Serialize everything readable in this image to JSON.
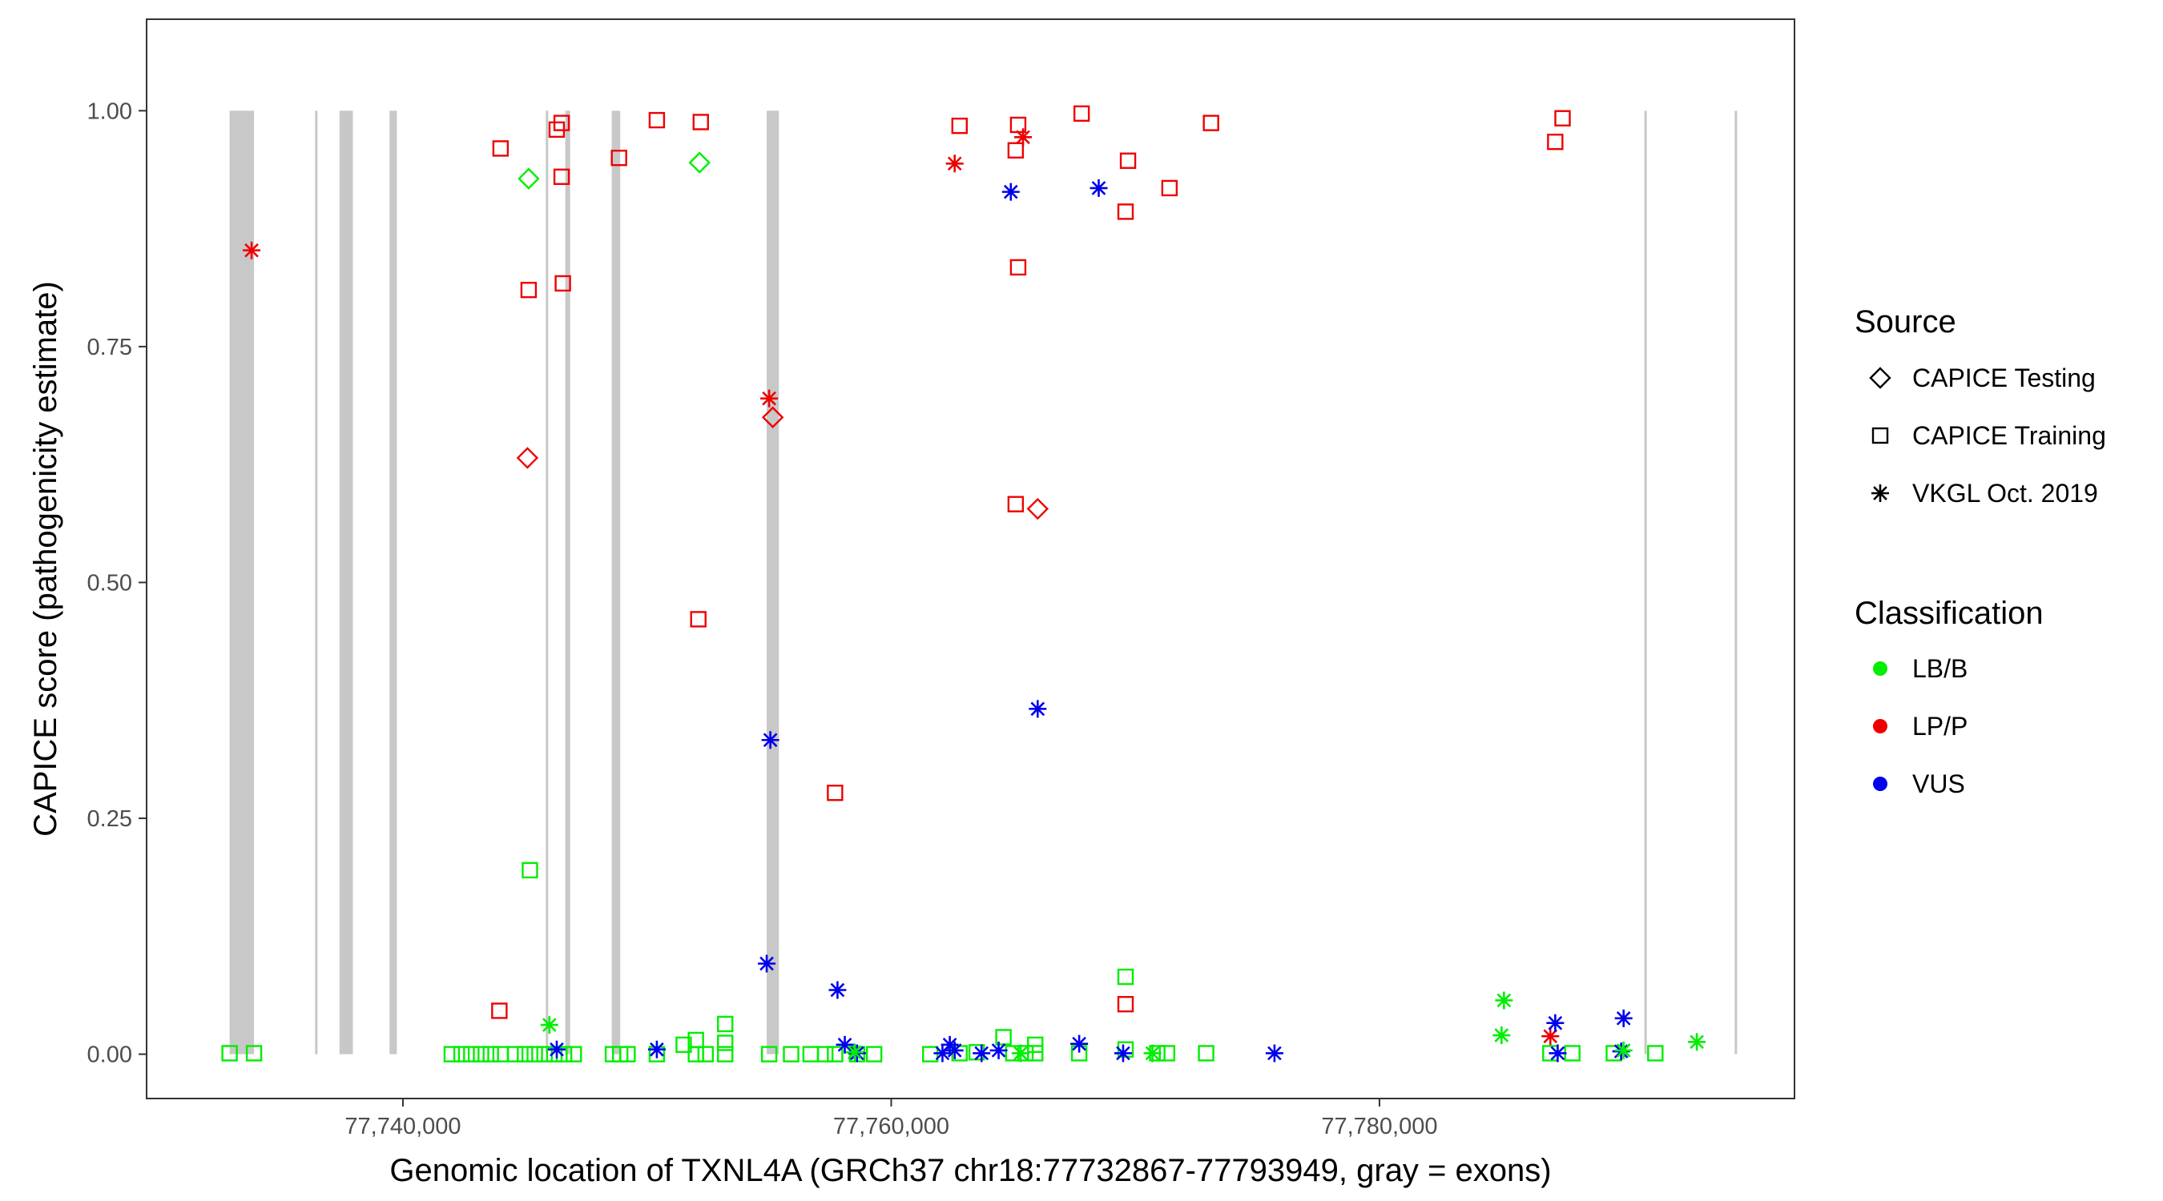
{
  "chart_data": {
    "type": "scatter",
    "title": "",
    "xlabel": "Genomic location of TXNL4A (GRCh37 chr18:77732867-77793949, gray = exons)",
    "ylabel": "CAPICE score (pathogenicity estimate)",
    "xlim": [
      77729500,
      77797000
    ],
    "ylim": [
      -0.047,
      1.097
    ],
    "x_ticks": [
      77740000,
      77760000,
      77780000
    ],
    "x_tick_labels": [
      "77,740,000",
      "77,760,000",
      "77,780,000"
    ],
    "y_ticks": [
      0,
      0.25,
      0.5,
      0.75,
      1.0
    ],
    "y_tick_labels": [
      "0.00",
      "0.25",
      "0.50",
      "0.75",
      "1.00"
    ],
    "grid": false,
    "exons": [
      [
        77732900,
        77733900
      ],
      [
        77736400,
        77736500
      ],
      [
        77737400,
        77737950
      ],
      [
        77739450,
        77739750
      ],
      [
        77745850,
        77745950
      ],
      [
        77746650,
        77746850
      ],
      [
        77748550,
        77748900
      ],
      [
        77754900,
        77755400
      ],
      [
        77790850,
        77790950
      ],
      [
        77794550,
        77794650
      ]
    ],
    "legend": {
      "placement": "right",
      "source_title": "Source",
      "source": [
        {
          "label": "CAPICE Testing",
          "shape": "diamond"
        },
        {
          "label": "CAPICE Training",
          "shape": "square"
        },
        {
          "label": "VKGL Oct. 2019",
          "shape": "asterisk"
        }
      ],
      "class_title": "Classification",
      "classes": [
        {
          "label": "LB/B",
          "color": "#00ee00"
        },
        {
          "label": "LP/P",
          "color": "#ee0000"
        },
        {
          "label": "VUS",
          "color": "#0000ee"
        }
      ]
    },
    "series": [
      {
        "source": "CAPICE Testing",
        "class": "LB/B",
        "points": [
          [
            77745150,
            0.928
          ],
          [
            77752150,
            0.945
          ]
        ]
      },
      {
        "source": "CAPICE Testing",
        "class": "LP/P",
        "points": [
          [
            77745100,
            0.632
          ],
          [
            77755150,
            0.675
          ],
          [
            77766000,
            0.578
          ]
        ]
      },
      {
        "source": "CAPICE Training",
        "class": "LP/P",
        "points": [
          [
            77744000,
            0.96
          ],
          [
            77746300,
            0.98
          ],
          [
            77746500,
            0.987
          ],
          [
            77748850,
            0.95
          ],
          [
            77746500,
            0.93
          ],
          [
            77750400,
            0.99
          ],
          [
            77752200,
            0.988
          ],
          [
            77745150,
            0.81
          ],
          [
            77746550,
            0.817
          ],
          [
            77752100,
            0.461
          ],
          [
            77757700,
            0.277
          ],
          [
            77743950,
            0.046
          ],
          [
            77762800,
            0.984
          ],
          [
            77765200,
            0.985
          ],
          [
            77765100,
            0.958
          ],
          [
            77767800,
            0.997
          ],
          [
            77769700,
            0.947
          ],
          [
            77765200,
            0.834
          ],
          [
            77769600,
            0.893
          ],
          [
            77771400,
            0.918
          ],
          [
            77773100,
            0.987
          ],
          [
            77765100,
            0.583
          ],
          [
            77769600,
            0.053
          ],
          [
            77787500,
            0.992
          ],
          [
            77787200,
            0.967
          ]
        ]
      },
      {
        "source": "CAPICE Training",
        "class": "LB/B",
        "points": [
          [
            77732900,
            0.001
          ],
          [
            77733900,
            0.001
          ],
          [
            77745200,
            0.195
          ],
          [
            77742000,
            0
          ],
          [
            77742400,
            0
          ],
          [
            77742800,
            0
          ],
          [
            77743200,
            0
          ],
          [
            77743600,
            0
          ],
          [
            77744000,
            0
          ],
          [
            77744600,
            0
          ],
          [
            77745000,
            0
          ],
          [
            77745400,
            0
          ],
          [
            77745800,
            0
          ],
          [
            77746200,
            0
          ],
          [
            77746600,
            0
          ],
          [
            77747000,
            0
          ],
          [
            77748600,
            0
          ],
          [
            77748900,
            0
          ],
          [
            77749200,
            0
          ],
          [
            77750400,
            0
          ],
          [
            77751500,
            0.01
          ],
          [
            77752000,
            0.015
          ],
          [
            77752000,
            0
          ],
          [
            77752400,
            0
          ],
          [
            77753200,
            0.032
          ],
          [
            77753200,
            0.012
          ],
          [
            77753200,
            0
          ],
          [
            77755000,
            0
          ],
          [
            77755900,
            0
          ],
          [
            77756700,
            0
          ],
          [
            77757300,
            0
          ],
          [
            77757700,
            0
          ],
          [
            77758600,
            0
          ],
          [
            77759300,
            0
          ],
          [
            77761600,
            0
          ],
          [
            77762800,
            0.001
          ],
          [
            77763500,
            0.002
          ],
          [
            77764600,
            0.018
          ],
          [
            77765000,
            0.001
          ],
          [
            77765500,
            0.001
          ],
          [
            77765900,
            0.01
          ],
          [
            77765900,
            0.001
          ],
          [
            77767700,
            0.001
          ],
          [
            77769600,
            0.082
          ],
          [
            77769600,
            0.005
          ],
          [
            77770900,
            0.001
          ],
          [
            77771300,
            0.001
          ],
          [
            77772900,
            0.001
          ],
          [
            77787000,
            0.001
          ],
          [
            77787900,
            0.001
          ],
          [
            77789600,
            0.001
          ],
          [
            77791300,
            0.001
          ]
        ]
      },
      {
        "source": "VKGL Oct. 2019",
        "class": "LP/P",
        "points": [
          [
            77733800,
            0.852
          ],
          [
            77755000,
            0.695
          ],
          [
            77762600,
            0.944
          ],
          [
            77765400,
            0.972
          ],
          [
            77787000,
            0.019
          ]
        ]
      },
      {
        "source": "VKGL Oct. 2019",
        "class": "VUS",
        "points": [
          [
            77755050,
            0.333
          ],
          [
            77764900,
            0.914
          ],
          [
            77768500,
            0.918
          ],
          [
            77766000,
            0.366
          ],
          [
            77754900,
            0.096
          ],
          [
            77757800,
            0.068
          ],
          [
            77746300,
            0.005
          ],
          [
            77750400,
            0.005
          ],
          [
            77758100,
            0.01
          ],
          [
            77758600,
            0.001
          ],
          [
            77762100,
            0.001
          ],
          [
            77762400,
            0.01
          ],
          [
            77762600,
            0.004
          ],
          [
            77763700,
            0.001
          ],
          [
            77764400,
            0.004
          ],
          [
            77767700,
            0.011
          ],
          [
            77769500,
            0.001
          ],
          [
            77775700,
            0.001
          ],
          [
            77787200,
            0.033
          ],
          [
            77787300,
            0.001
          ],
          [
            77790000,
            0.038
          ],
          [
            77789900,
            0.003
          ]
        ]
      },
      {
        "source": "VKGL Oct. 2019",
        "class": "LB/B",
        "points": [
          [
            77746000,
            0.031
          ],
          [
            77758500,
            0.002
          ],
          [
            77765300,
            0.001
          ],
          [
            77770700,
            0.001
          ],
          [
            77785100,
            0.057
          ],
          [
            77785000,
            0.02
          ],
          [
            77793000,
            0.013
          ],
          [
            77790000,
            0.004
          ]
        ]
      }
    ]
  }
}
